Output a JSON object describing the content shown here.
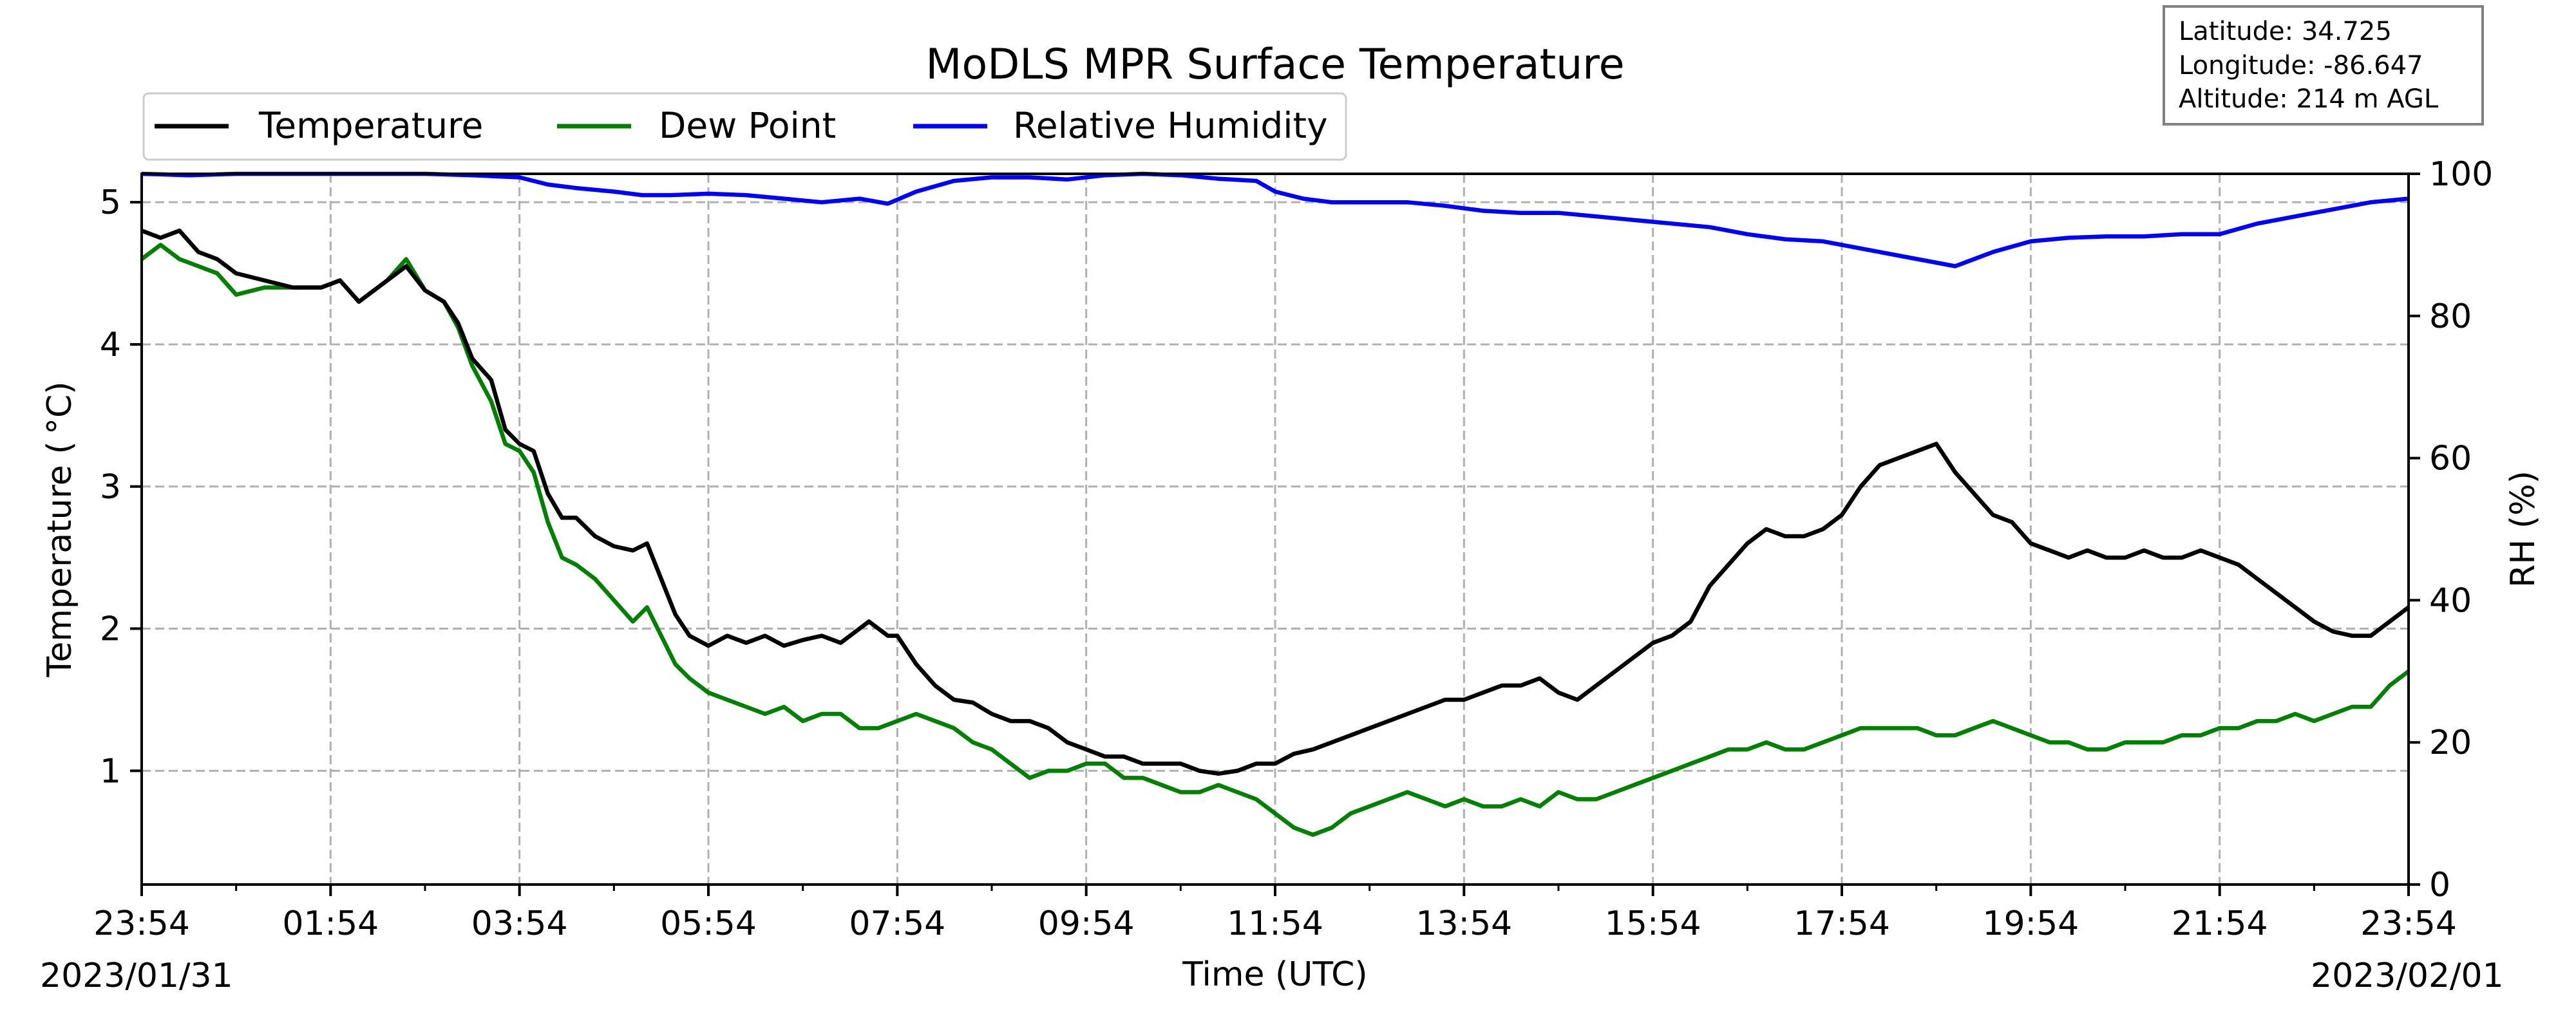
{
  "chart_data": {
    "type": "line",
    "title": "MoDLS MPR Surface Temperature",
    "xlabel": "Time (UTC)",
    "ylabel_left": "Temperature ($^\\circ$C)",
    "ylabel_left_display": "Temperature ( °C)",
    "ylabel_right": "RH (%)",
    "x_ticks": [
      "23:54",
      "01:54",
      "03:54",
      "05:54",
      "07:54",
      "09:54",
      "11:54",
      "13:54",
      "15:54",
      "17:54",
      "19:54",
      "21:54",
      "23:54"
    ],
    "x_tick_hours": [
      0,
      2,
      4,
      6,
      8,
      10,
      12,
      14,
      16,
      18,
      20,
      22,
      24
    ],
    "xlim_hours_since_start": [
      0,
      24
    ],
    "date_start": "2023/01/31",
    "date_end": "2023/02/01",
    "ylim_left": [
      0.2,
      5.2
    ],
    "yticks_left": [
      1,
      2,
      3,
      4,
      5
    ],
    "ylim_right": [
      0,
      100
    ],
    "yticks_right": [
      0,
      20,
      40,
      60,
      80,
      100
    ],
    "grid": true,
    "legend_placement": "top-left, above axes",
    "info_box": [
      "Latitude: 34.725",
      "Longitude: -86.647",
      "Altitude: 214 m AGL"
    ],
    "series": [
      {
        "name": "Temperature",
        "axis": "left",
        "color": "#000000",
        "points": [
          [
            0,
            4.8
          ],
          [
            0.2,
            4.75
          ],
          [
            0.4,
            4.8
          ],
          [
            0.6,
            4.65
          ],
          [
            0.8,
            4.6
          ],
          [
            1,
            4.5
          ],
          [
            1.3,
            4.45
          ],
          [
            1.6,
            4.4
          ],
          [
            1.9,
            4.4
          ],
          [
            2.1,
            4.45
          ],
          [
            2.3,
            4.3
          ],
          [
            2.6,
            4.45
          ],
          [
            2.8,
            4.55
          ],
          [
            3,
            4.38
          ],
          [
            3.2,
            4.3
          ],
          [
            3.35,
            4.15
          ],
          [
            3.5,
            3.9
          ],
          [
            3.7,
            3.75
          ],
          [
            3.85,
            3.4
          ],
          [
            4,
            3.3
          ],
          [
            4.15,
            3.25
          ],
          [
            4.3,
            2.95
          ],
          [
            4.45,
            2.78
          ],
          [
            4.6,
            2.78
          ],
          [
            4.8,
            2.65
          ],
          [
            5,
            2.58
          ],
          [
            5.2,
            2.55
          ],
          [
            5.35,
            2.6
          ],
          [
            5.5,
            2.35
          ],
          [
            5.65,
            2.1
          ],
          [
            5.8,
            1.95
          ],
          [
            6,
            1.88
          ],
          [
            6.2,
            1.95
          ],
          [
            6.4,
            1.9
          ],
          [
            6.6,
            1.95
          ],
          [
            6.8,
            1.88
          ],
          [
            7,
            1.92
          ],
          [
            7.2,
            1.95
          ],
          [
            7.4,
            1.9
          ],
          [
            7.7,
            2.05
          ],
          [
            7.9,
            1.95
          ],
          [
            8,
            1.95
          ],
          [
            8.2,
            1.75
          ],
          [
            8.4,
            1.6
          ],
          [
            8.6,
            1.5
          ],
          [
            8.8,
            1.48
          ],
          [
            9,
            1.4
          ],
          [
            9.2,
            1.35
          ],
          [
            9.4,
            1.35
          ],
          [
            9.6,
            1.3
          ],
          [
            9.8,
            1.2
          ],
          [
            10,
            1.15
          ],
          [
            10.2,
            1.1
          ],
          [
            10.4,
            1.1
          ],
          [
            10.6,
            1.05
          ],
          [
            10.8,
            1.05
          ],
          [
            11,
            1.05
          ],
          [
            11.2,
            1.0
          ],
          [
            11.4,
            0.98
          ],
          [
            11.6,
            1.0
          ],
          [
            11.8,
            1.05
          ],
          [
            12,
            1.05
          ],
          [
            12.2,
            1.12
          ],
          [
            12.4,
            1.15
          ],
          [
            12.6,
            1.2
          ],
          [
            12.8,
            1.25
          ],
          [
            13,
            1.3
          ],
          [
            13.2,
            1.35
          ],
          [
            13.4,
            1.4
          ],
          [
            13.6,
            1.45
          ],
          [
            13.8,
            1.5
          ],
          [
            14,
            1.5
          ],
          [
            14.2,
            1.55
          ],
          [
            14.4,
            1.6
          ],
          [
            14.6,
            1.6
          ],
          [
            14.8,
            1.65
          ],
          [
            15,
            1.55
          ],
          [
            15.2,
            1.5
          ],
          [
            15.4,
            1.6
          ],
          [
            15.6,
            1.7
          ],
          [
            15.8,
            1.8
          ],
          [
            16,
            1.9
          ],
          [
            16.2,
            1.95
          ],
          [
            16.4,
            2.05
          ],
          [
            16.6,
            2.3
          ],
          [
            16.8,
            2.45
          ],
          [
            17,
            2.6
          ],
          [
            17.2,
            2.7
          ],
          [
            17.4,
            2.65
          ],
          [
            17.6,
            2.65
          ],
          [
            17.8,
            2.7
          ],
          [
            18,
            2.8
          ],
          [
            18.2,
            3.0
          ],
          [
            18.4,
            3.15
          ],
          [
            18.6,
            3.2
          ],
          [
            18.8,
            3.25
          ],
          [
            19,
            3.3
          ],
          [
            19.2,
            3.1
          ],
          [
            19.4,
            2.95
          ],
          [
            19.6,
            2.8
          ],
          [
            19.8,
            2.75
          ],
          [
            20,
            2.6
          ],
          [
            20.2,
            2.55
          ],
          [
            20.4,
            2.5
          ],
          [
            20.6,
            2.55
          ],
          [
            20.8,
            2.5
          ],
          [
            21,
            2.5
          ],
          [
            21.2,
            2.55
          ],
          [
            21.4,
            2.5
          ],
          [
            21.6,
            2.5
          ],
          [
            21.8,
            2.55
          ],
          [
            22,
            2.5
          ],
          [
            22.2,
            2.45
          ],
          [
            22.4,
            2.35
          ],
          [
            22.6,
            2.25
          ],
          [
            22.8,
            2.15
          ],
          [
            23,
            2.05
          ],
          [
            23.2,
            1.98
          ],
          [
            23.4,
            1.95
          ],
          [
            23.6,
            1.95
          ],
          [
            23.8,
            2.05
          ],
          [
            24,
            2.15
          ]
        ]
      },
      {
        "name": "Dew Point",
        "axis": "left",
        "color": "#008000",
        "points": [
          [
            0,
            4.6
          ],
          [
            0.2,
            4.7
          ],
          [
            0.4,
            4.6
          ],
          [
            0.6,
            4.55
          ],
          [
            0.8,
            4.5
          ],
          [
            1,
            4.35
          ],
          [
            1.3,
            4.4
          ],
          [
            1.6,
            4.4
          ],
          [
            1.9,
            4.4
          ],
          [
            2.1,
            4.45
          ],
          [
            2.3,
            4.3
          ],
          [
            2.6,
            4.45
          ],
          [
            2.8,
            4.6
          ],
          [
            3,
            4.38
          ],
          [
            3.2,
            4.3
          ],
          [
            3.35,
            4.12
          ],
          [
            3.5,
            3.85
          ],
          [
            3.7,
            3.6
          ],
          [
            3.85,
            3.3
          ],
          [
            4,
            3.25
          ],
          [
            4.15,
            3.1
          ],
          [
            4.3,
            2.75
          ],
          [
            4.45,
            2.5
          ],
          [
            4.6,
            2.45
          ],
          [
            4.8,
            2.35
          ],
          [
            5,
            2.2
          ],
          [
            5.2,
            2.05
          ],
          [
            5.35,
            2.15
          ],
          [
            5.5,
            1.95
          ],
          [
            5.65,
            1.75
          ],
          [
            5.8,
            1.65
          ],
          [
            6,
            1.55
          ],
          [
            6.2,
            1.5
          ],
          [
            6.4,
            1.45
          ],
          [
            6.6,
            1.4
          ],
          [
            6.8,
            1.45
          ],
          [
            7,
            1.35
          ],
          [
            7.2,
            1.4
          ],
          [
            7.4,
            1.4
          ],
          [
            7.6,
            1.3
          ],
          [
            7.8,
            1.3
          ],
          [
            8,
            1.35
          ],
          [
            8.2,
            1.4
          ],
          [
            8.4,
            1.35
          ],
          [
            8.6,
            1.3
          ],
          [
            8.8,
            1.2
          ],
          [
            9,
            1.15
          ],
          [
            9.2,
            1.05
          ],
          [
            9.4,
            0.95
          ],
          [
            9.6,
            1.0
          ],
          [
            9.8,
            1.0
          ],
          [
            10,
            1.05
          ],
          [
            10.2,
            1.05
          ],
          [
            10.4,
            0.95
          ],
          [
            10.6,
            0.95
          ],
          [
            10.8,
            0.9
          ],
          [
            11,
            0.85
          ],
          [
            11.2,
            0.85
          ],
          [
            11.4,
            0.9
          ],
          [
            11.6,
            0.85
          ],
          [
            11.8,
            0.8
          ],
          [
            12,
            0.7
          ],
          [
            12.2,
            0.6
          ],
          [
            12.4,
            0.55
          ],
          [
            12.6,
            0.6
          ],
          [
            12.8,
            0.7
          ],
          [
            13,
            0.75
          ],
          [
            13.2,
            0.8
          ],
          [
            13.4,
            0.85
          ],
          [
            13.6,
            0.8
          ],
          [
            13.8,
            0.75
          ],
          [
            14,
            0.8
          ],
          [
            14.2,
            0.75
          ],
          [
            14.4,
            0.75
          ],
          [
            14.6,
            0.8
          ],
          [
            14.8,
            0.75
          ],
          [
            15,
            0.85
          ],
          [
            15.2,
            0.8
          ],
          [
            15.4,
            0.8
          ],
          [
            15.6,
            0.85
          ],
          [
            15.8,
            0.9
          ],
          [
            16,
            0.95
          ],
          [
            16.2,
            1.0
          ],
          [
            16.4,
            1.05
          ],
          [
            16.6,
            1.1
          ],
          [
            16.8,
            1.15
          ],
          [
            17,
            1.15
          ],
          [
            17.2,
            1.2
          ],
          [
            17.4,
            1.15
          ],
          [
            17.6,
            1.15
          ],
          [
            17.8,
            1.2
          ],
          [
            18,
            1.25
          ],
          [
            18.2,
            1.3
          ],
          [
            18.4,
            1.3
          ],
          [
            18.6,
            1.3
          ],
          [
            18.8,
            1.3
          ],
          [
            19,
            1.25
          ],
          [
            19.2,
            1.25
          ],
          [
            19.4,
            1.3
          ],
          [
            19.6,
            1.35
          ],
          [
            19.8,
            1.3
          ],
          [
            20,
            1.25
          ],
          [
            20.2,
            1.2
          ],
          [
            20.4,
            1.2
          ],
          [
            20.6,
            1.15
          ],
          [
            20.8,
            1.15
          ],
          [
            21,
            1.2
          ],
          [
            21.2,
            1.2
          ],
          [
            21.4,
            1.2
          ],
          [
            21.6,
            1.25
          ],
          [
            21.8,
            1.25
          ],
          [
            22,
            1.3
          ],
          [
            22.2,
            1.3
          ],
          [
            22.4,
            1.35
          ],
          [
            22.6,
            1.35
          ],
          [
            22.8,
            1.4
          ],
          [
            23,
            1.35
          ],
          [
            23.2,
            1.4
          ],
          [
            23.4,
            1.45
          ],
          [
            23.6,
            1.45
          ],
          [
            23.8,
            1.6
          ],
          [
            24,
            1.7
          ]
        ]
      },
      {
        "name": "Relative Humidity",
        "axis": "right",
        "color": "#0000ff",
        "points": [
          [
            0,
            100
          ],
          [
            0.5,
            99.8
          ],
          [
            1,
            100
          ],
          [
            1.5,
            100
          ],
          [
            2,
            100
          ],
          [
            2.5,
            100
          ],
          [
            3,
            100
          ],
          [
            3.5,
            99.8
          ],
          [
            4,
            99.5
          ],
          [
            4.3,
            98.5
          ],
          [
            4.6,
            98
          ],
          [
            5,
            97.5
          ],
          [
            5.3,
            97
          ],
          [
            5.6,
            97
          ],
          [
            6,
            97.2
          ],
          [
            6.4,
            97
          ],
          [
            6.8,
            96.5
          ],
          [
            7.2,
            96
          ],
          [
            7.6,
            96.5
          ],
          [
            7.9,
            95.8
          ],
          [
            8.2,
            97.5
          ],
          [
            8.6,
            99
          ],
          [
            9,
            99.5
          ],
          [
            9.4,
            99.5
          ],
          [
            9.8,
            99.2
          ],
          [
            10.2,
            99.8
          ],
          [
            10.6,
            100
          ],
          [
            11,
            99.8
          ],
          [
            11.4,
            99.3
          ],
          [
            11.8,
            99
          ],
          [
            12,
            97.5
          ],
          [
            12.3,
            96.5
          ],
          [
            12.6,
            96
          ],
          [
            13,
            96
          ],
          [
            13.4,
            96
          ],
          [
            13.8,
            95.5
          ],
          [
            14.2,
            94.8
          ],
          [
            14.6,
            94.5
          ],
          [
            15,
            94.5
          ],
          [
            15.4,
            94
          ],
          [
            15.8,
            93.5
          ],
          [
            16.2,
            93
          ],
          [
            16.6,
            92.5
          ],
          [
            17,
            91.5
          ],
          [
            17.4,
            90.8
          ],
          [
            17.8,
            90.5
          ],
          [
            18.2,
            89.5
          ],
          [
            18.6,
            88.5
          ],
          [
            19,
            87.5
          ],
          [
            19.2,
            87
          ],
          [
            19.6,
            89
          ],
          [
            20,
            90.5
          ],
          [
            20.4,
            91
          ],
          [
            20.8,
            91.2
          ],
          [
            21.2,
            91.2
          ],
          [
            21.6,
            91.5
          ],
          [
            22,
            91.5
          ],
          [
            22.4,
            93
          ],
          [
            22.8,
            94
          ],
          [
            23.2,
            95
          ],
          [
            23.6,
            96
          ],
          [
            24,
            96.5
          ]
        ]
      }
    ]
  }
}
